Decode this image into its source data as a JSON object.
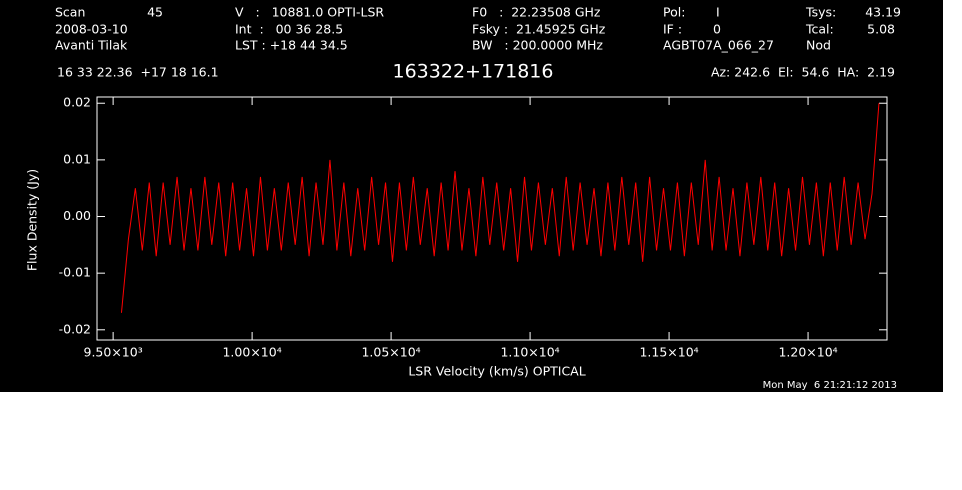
{
  "header": {
    "scan_label": "Scan",
    "scan": "45",
    "date": "2008-03-10",
    "observer": "Avanti Tilak",
    "velocity": "V   :   10881.0 OPTI-LSR",
    "int": "Int  :   00 36 28.5",
    "lst": "LST : +18 44 34.5",
    "f0": "F0   :  22.23508 GHz",
    "fsky": "Fsky :  21.45925 GHz",
    "bw": "BW   : 200.0000 MHz",
    "pol_label": "Pol:",
    "pol": "I",
    "if_label": "IF :",
    "if": "0",
    "project": "AGBT07A_066_27",
    "tsys_label": "Tsys:",
    "tsys": "43.19",
    "tcal_label": "Tcal:",
    "tcal": "5.08",
    "proc": "Nod",
    "coords": "16 33 22.36  +17 18 16.1",
    "azel": "Az: 242.6  El:  54.6  HA:  2.19",
    "timestamp": "Mon May  6 21:21:12 2013"
  },
  "chart_data": {
    "type": "line",
    "title": "163322+171816",
    "x_label": "LSR Velocity (km/s) OPTICAL",
    "y_label": "Flux Density (Jy)",
    "xlim": [
      9442,
      12284
    ],
    "ylim": [
      -0.0218,
      0.0211
    ],
    "xticks": [
      {
        "value": 9500,
        "label": "9.50×10³"
      },
      {
        "value": 10000,
        "label": "1.00×10⁴"
      },
      {
        "value": 10500,
        "label": "1.05×10⁴"
      },
      {
        "value": 11000,
        "label": "1.10×10⁴"
      },
      {
        "value": 11500,
        "label": "1.15×10⁴"
      },
      {
        "value": 12000,
        "label": "1.20×10⁴"
      }
    ],
    "yticks": [
      -0.02,
      -0.01,
      {
        "value": 0,
        "label": "0.00"
      },
      0.01,
      0.02
    ],
    "grid": false,
    "x": [
      9530,
      9555,
      9580,
      9605,
      9630,
      9655,
      9680,
      9705,
      9730,
      9755,
      9780,
      9805,
      9830,
      9855,
      9880,
      9905,
      9930,
      9955,
      9980,
      10005,
      10030,
      10055,
      10080,
      10105,
      10130,
      10155,
      10180,
      10205,
      10230,
      10255,
      10280,
      10305,
      10330,
      10355,
      10380,
      10405,
      10430,
      10455,
      10480,
      10505,
      10530,
      10555,
      10580,
      10605,
      10630,
      10655,
      10680,
      10705,
      10730,
      10755,
      10780,
      10805,
      10830,
      10855,
      10880,
      10905,
      10930,
      10955,
      10980,
      11005,
      11030,
      11055,
      11080,
      11105,
      11130,
      11155,
      11180,
      11205,
      11230,
      11255,
      11280,
      11305,
      11330,
      11355,
      11380,
      11405,
      11430,
      11455,
      11480,
      11505,
      11530,
      11555,
      11580,
      11605,
      11630,
      11655,
      11680,
      11705,
      11730,
      11755,
      11780,
      11805,
      11830,
      11855,
      11880,
      11905,
      11930,
      11955,
      11980,
      12005,
      12030,
      12055,
      12080,
      12105,
      12130,
      12155,
      12180,
      12205,
      12230,
      12255
    ],
    "series": [
      {
        "color": "#ff0000",
        "values": [
          -0.017,
          -0.004,
          0.005,
          -0.006,
          0.006,
          -0.007,
          0.006,
          -0.005,
          0.007,
          -0.006,
          0.005,
          -0.006,
          0.007,
          -0.005,
          0.006,
          -0.007,
          0.006,
          -0.006,
          0.005,
          -0.007,
          0.007,
          -0.006,
          0.005,
          -0.006,
          0.006,
          -0.005,
          0.007,
          -0.007,
          0.006,
          -0.005,
          0.01,
          -0.006,
          0.006,
          -0.007,
          0.005,
          -0.006,
          0.007,
          -0.005,
          0.006,
          -0.008,
          0.006,
          -0.006,
          0.007,
          -0.005,
          0.005,
          -0.007,
          0.006,
          -0.006,
          0.008,
          -0.006,
          0.005,
          -0.007,
          0.007,
          -0.005,
          0.006,
          -0.006,
          0.005,
          -0.008,
          0.007,
          -0.006,
          0.006,
          -0.005,
          0.005,
          -0.007,
          0.007,
          -0.006,
          0.006,
          -0.005,
          0.005,
          -0.007,
          0.006,
          -0.006,
          0.007,
          -0.005,
          0.006,
          -0.008,
          0.007,
          -0.006,
          0.005,
          -0.006,
          0.006,
          -0.007,
          0.006,
          -0.005,
          0.01,
          -0.006,
          0.007,
          -0.006,
          0.005,
          -0.007,
          0.006,
          -0.005,
          0.007,
          -0.006,
          0.006,
          -0.007,
          0.005,
          -0.006,
          0.007,
          -0.005,
          0.006,
          -0.007,
          0.006,
          -0.006,
          0.007,
          -0.005,
          0.006,
          -0.004,
          0.004,
          0.02
        ]
      }
    ]
  }
}
